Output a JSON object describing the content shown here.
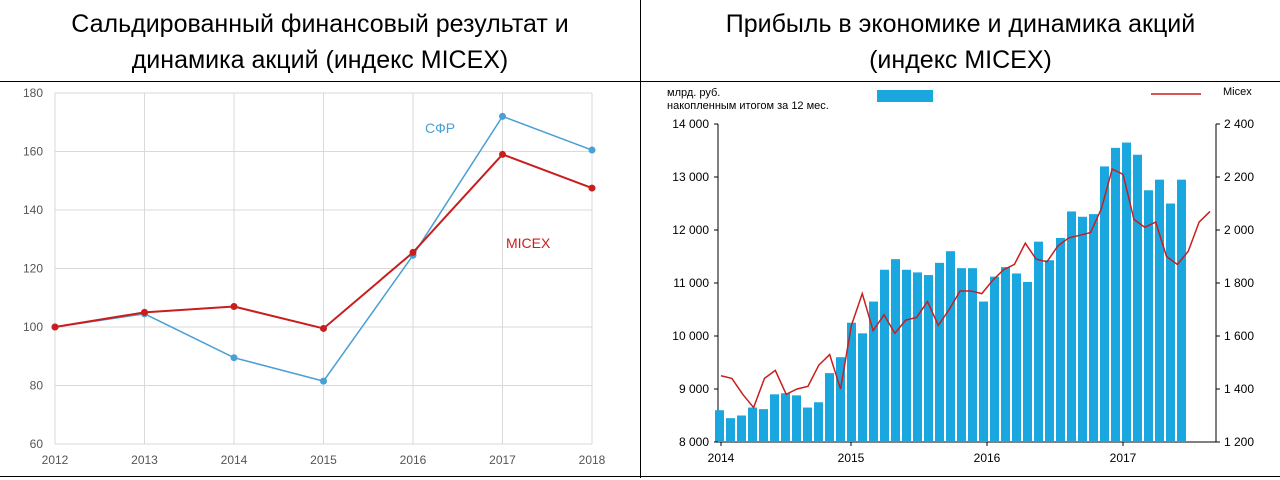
{
  "colors": {
    "sfr": "#4a9fd4",
    "micex": "#c81e1e",
    "bars": "#1aa7e0",
    "grid": "#d9d9d9"
  },
  "left_panel": {
    "header_line1": "Сальдированный финансовый результат и",
    "header_line2": "динамика акций (индекс MICEX)"
  },
  "right_panel": {
    "header_line1": "Прибыль в экономике и динамика акций",
    "header_line2": "(индекс MICEX)"
  },
  "chart_data": [
    {
      "type": "line",
      "title": "Сальдированный финансовый результат и динамика акций (индекс MICEX)",
      "x": [
        "2012",
        "2013",
        "2014",
        "2015",
        "2016",
        "2017",
        "2018"
      ],
      "series": [
        {
          "name": "СФР",
          "values": [
            100,
            104.5,
            89.5,
            81.5,
            124.5,
            172,
            160.5
          ]
        },
        {
          "name": "MICEX",
          "values": [
            100,
            105,
            107,
            99.5,
            125.5,
            159,
            147.5
          ]
        }
      ],
      "ylim": [
        60,
        180
      ],
      "yticks": [
        60,
        80,
        100,
        120,
        140,
        160,
        180
      ],
      "grid": true
    },
    {
      "type": "bar",
      "title": "Прибыль в экономике и динамика акций (индекс MICEX)",
      "bar_unit_line1": "млрд. руб.",
      "bar_unit_line2": "накопленным итогом за 12 мес.",
      "line_legend": "Micex",
      "x_labels": [
        "2014",
        "2015",
        "2016",
        "2017"
      ],
      "ylim_left": [
        8000,
        14000
      ],
      "yticks_left": [
        "8 000",
        "9 000",
        "10 000",
        "11 000",
        "12 000",
        "13 000",
        "14 000"
      ],
      "ylim_right": [
        1200,
        2400
      ],
      "yticks_right": [
        "1 200",
        "1 400",
        "1 600",
        "1 800",
        "2 000",
        "2 200",
        "2 400"
      ],
      "bars": [
        8600,
        8450,
        8500,
        8650,
        8620,
        8900,
        8920,
        8880,
        8650,
        8750,
        9300,
        9600,
        10250,
        10050,
        10650,
        11250,
        11450,
        11250,
        11200,
        11150,
        11380,
        11600,
        11280,
        11280,
        10650,
        11120,
        11300,
        11180,
        11020,
        11780,
        11430,
        11850,
        12350,
        12250,
        12300,
        13200,
        13550,
        13650,
        13420,
        12750,
        12950,
        12500,
        12950
      ],
      "micex_line": [
        1450,
        1440,
        1380,
        1330,
        1440,
        1470,
        1380,
        1400,
        1410,
        1490,
        1530,
        1400,
        1640,
        1760,
        1620,
        1680,
        1610,
        1660,
        1670,
        1730,
        1640,
        1700,
        1770,
        1770,
        1760,
        1810,
        1850,
        1870,
        1950,
        1890,
        1880,
        1940,
        1970,
        1980,
        1990,
        2080,
        2230,
        2210,
        2040,
        2010,
        2030,
        1900,
        1870,
        1920,
        2030,
        2070
      ]
    }
  ]
}
